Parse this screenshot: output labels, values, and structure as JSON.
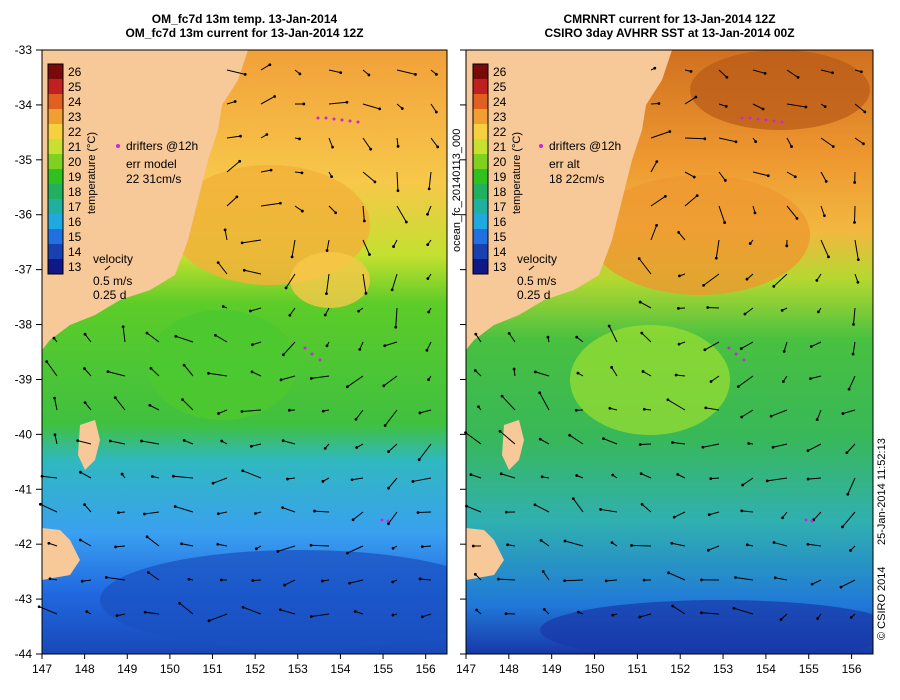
{
  "left_panel": {
    "title_line1": "OM_fc7d 13m temp. 13-Jan-2014",
    "title_line2": "OM_fc7d 13m current for 13-Jan-2014 12Z",
    "legend_drifters": "drifters @12h",
    "legend_err_label": "err model",
    "legend_err_value": "22 31cm/s",
    "velocity_label": "velocity",
    "velocity_scale_speed": "0.5 m/s",
    "velocity_scale_time": "0.25 d"
  },
  "right_panel": {
    "title_line1": "CMRNRT current for 13-Jan-2014 12Z",
    "title_line2": "CSIRO 3day AVHRR SST at 13-Jan-2014 00Z",
    "legend_drifters": "drifters @12h",
    "legend_err_label": "err alt",
    "legend_err_value": "18 22cm/s",
    "velocity_label": "velocity",
    "velocity_scale_speed": "0.5 m/s",
    "velocity_scale_time": "0.25 d"
  },
  "colorbar": {
    "label": "temperature (°C)",
    "ticks": [
      26,
      25,
      24,
      23,
      22,
      21,
      20,
      19,
      18,
      17,
      16,
      15,
      14,
      13
    ]
  },
  "axes": {
    "x_ticks": [
      147,
      148,
      149,
      150,
      151,
      152,
      153,
      154,
      155,
      156
    ],
    "y_ticks": [
      -33,
      -34,
      -35,
      -36,
      -37,
      -38,
      -39,
      -40,
      -41,
      -42,
      -43,
      -44
    ]
  },
  "side_labels": {
    "product_id": "ocean_fc_20140113_000",
    "timestamp": "25-Jan-2014 11:52:13",
    "copyright": "© CSIRO 2014"
  },
  "colors": {
    "land": "#f7c898",
    "warm": "#f2a43a",
    "cool": "#1866d8"
  }
}
